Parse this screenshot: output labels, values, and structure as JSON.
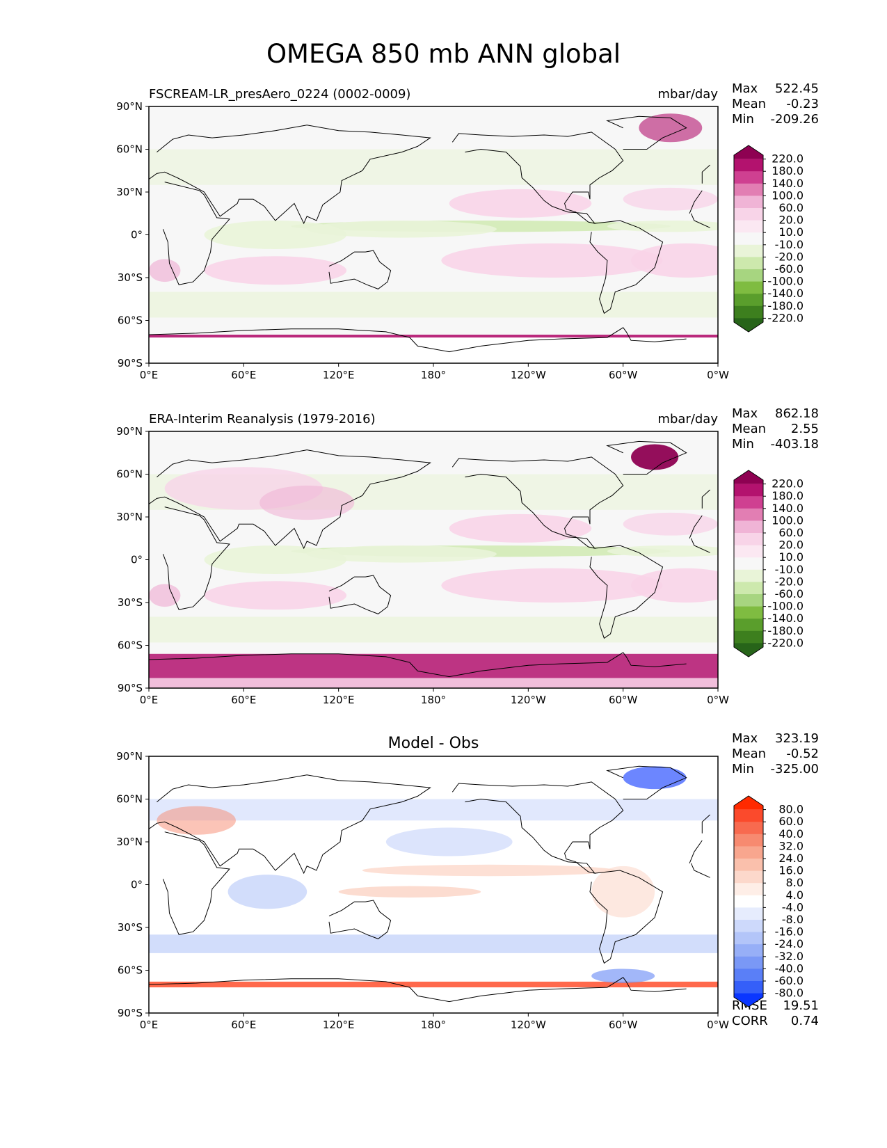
{
  "title": "OMEGA 850 mb ANN global",
  "chart_data": [
    {
      "type": "heatmap",
      "left_title": "FSCREAM-LR_presAero_0224 (0002-0009)",
      "center_title": "",
      "units": "mbar/day",
      "stats": [
        {
          "label": "Max",
          "value": "522.45"
        },
        {
          "label": "Mean",
          "value": "-0.23"
        },
        {
          "label": "Min",
          "value": "-209.26"
        }
      ],
      "extra_stats": [],
      "x_ticks": [
        "0°E",
        "60°E",
        "120°E",
        "180°",
        "120°W",
        "60°W",
        "0°W"
      ],
      "y_ticks": [
        "90°N",
        "60°N",
        "30°N",
        "0°",
        "30°S",
        "60°S",
        "90°S"
      ],
      "xlim": [
        0,
        360
      ],
      "ylim": [
        -90,
        90
      ],
      "colorbar": {
        "labels": [
          "220.0",
          "180.0",
          "140.0",
          "100.0",
          "60.0",
          "20.0",
          "10.0",
          "-10.0",
          "-20.0",
          "-60.0",
          "-100.0",
          "-140.0",
          "-180.0",
          "-220.0"
        ],
        "colors": [
          "#8e0152",
          "#b3126e",
          "#cf4091",
          "#e27eb3",
          "#f0b4d6",
          "#f8d4e8",
          "#fbe8f2",
          "#f7f7f7",
          "#e9f4d8",
          "#cde9ad",
          "#a7d580",
          "#7fbc41",
          "#5a9e2c",
          "#3d7f1e",
          "#276419"
        ]
      }
    },
    {
      "type": "heatmap",
      "left_title": "ERA-Interim Reanalysis (1979-2016)",
      "center_title": "",
      "units": "mbar/day",
      "stats": [
        {
          "label": "Max",
          "value": "862.18"
        },
        {
          "label": "Mean",
          "value": "2.55"
        },
        {
          "label": "Min",
          "value": "-403.18"
        }
      ],
      "extra_stats": [],
      "x_ticks": [
        "0°E",
        "60°E",
        "120°E",
        "180°",
        "120°W",
        "60°W",
        "0°W"
      ],
      "y_ticks": [
        "90°N",
        "60°N",
        "30°N",
        "0°",
        "30°S",
        "60°S",
        "90°S"
      ],
      "xlim": [
        0,
        360
      ],
      "ylim": [
        -90,
        90
      ],
      "colorbar": {
        "labels": [
          "220.0",
          "180.0",
          "140.0",
          "100.0",
          "60.0",
          "20.0",
          "10.0",
          "-10.0",
          "-20.0",
          "-60.0",
          "-100.0",
          "-140.0",
          "-180.0",
          "-220.0"
        ],
        "colors": [
          "#8e0152",
          "#b3126e",
          "#cf4091",
          "#e27eb3",
          "#f0b4d6",
          "#f8d4e8",
          "#fbe8f2",
          "#f7f7f7",
          "#e9f4d8",
          "#cde9ad",
          "#a7d580",
          "#7fbc41",
          "#5a9e2c",
          "#3d7f1e",
          "#276419"
        ]
      }
    },
    {
      "type": "heatmap",
      "left_title": "",
      "center_title": "Model - Obs",
      "units": "",
      "stats": [
        {
          "label": "Max",
          "value": "323.19"
        },
        {
          "label": "Mean",
          "value": "-0.52"
        },
        {
          "label": "Min",
          "value": "-325.00"
        }
      ],
      "extra_stats": [
        {
          "label": "RMSE",
          "value": "19.51"
        },
        {
          "label": "CORR",
          "value": "0.74"
        }
      ],
      "x_ticks": [
        "0°E",
        "60°E",
        "120°E",
        "180°",
        "120°W",
        "60°W",
        "0°W"
      ],
      "y_ticks": [
        "90°N",
        "60°N",
        "30°N",
        "0°",
        "30°S",
        "60°S",
        "90°S"
      ],
      "xlim": [
        0,
        360
      ],
      "ylim": [
        -90,
        90
      ],
      "colorbar": {
        "labels": [
          "80.0",
          "60.0",
          "40.0",
          "32.0",
          "24.0",
          "16.0",
          "8.0",
          "4.0",
          "-4.0",
          "-8.0",
          "-16.0",
          "-24.0",
          "-32.0",
          "-40.0",
          "-60.0",
          "-80.0"
        ],
        "colors": [
          "#ff2a00",
          "#fb4a2c",
          "#f86a4f",
          "#f78a70",
          "#f8a68e",
          "#fac0ac",
          "#fcd8cb",
          "#feeee7",
          "#ffffff",
          "#e6ecfd",
          "#cdd9fb",
          "#b3c5f9",
          "#97aff7",
          "#7a98f6",
          "#5a7ff7",
          "#355ff9",
          "#0a36ff"
        ]
      }
    }
  ]
}
